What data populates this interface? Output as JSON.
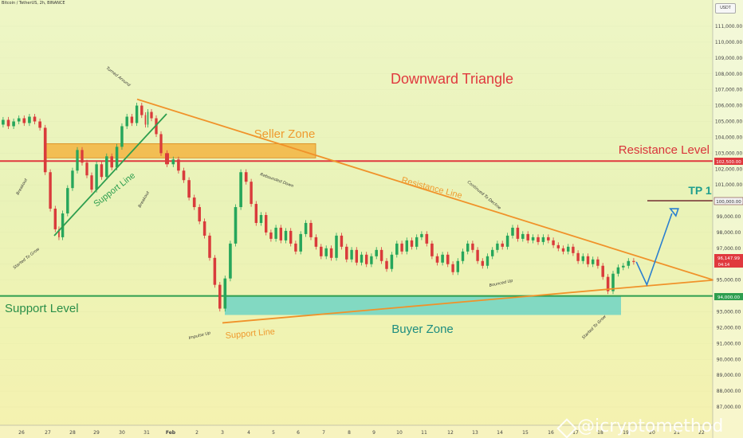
{
  "header": {
    "symbol": "Bitcoin / TetherUS, 2h, BINANCE",
    "unit": "USDT"
  },
  "colors": {
    "resistance": "#f0922a",
    "support_level": "#2e9e4f",
    "resistance_level": "#e0393e",
    "seller_zone": "#f3b441",
    "buyer_zone": "#6fd3c4",
    "up": "#26a65b",
    "down": "#d93b3b",
    "tp": "#1f9e8e"
  },
  "annotations": {
    "title": "Downward Triangle",
    "seller_zone": "Seller Zone",
    "buyer_zone": "Buyer Zone",
    "resistance_level": "Resistance Level",
    "support_level": "Support Level",
    "resistance_line": "Resistance Line",
    "support_line_left": "Support Line",
    "support_line_bottom": "Support Line",
    "tp": "TP 1",
    "small": [
      "Turned Around",
      "Breakout",
      "Started To Grow",
      "Breakout",
      "Rebounded Down",
      "Continued To Decline",
      "Bounced Up",
      "Impulse Up",
      "Started To Grow"
    ]
  },
  "price_labels": {
    "resistance": "102,500.00",
    "tp": "100,000.00",
    "current": "96,147.99",
    "countdown": "04:14",
    "support": "94,000.00"
  },
  "watermark": "@icryptomethod",
  "chart_data": {
    "type": "candlestick",
    "title": "Downward Triangle",
    "ylim": [
      86000,
      112000
    ],
    "y_ticks": [
      87000,
      88000,
      89000,
      90000,
      91000,
      92000,
      93000,
      94000,
      95000,
      96000,
      97000,
      98000,
      99000,
      100000,
      101000,
      102000,
      103000,
      104000,
      105000,
      106000,
      107000,
      108000,
      109000,
      110000,
      111000
    ],
    "x_tick_labels": [
      "26",
      "27",
      "28",
      "29",
      "30",
      "31",
      "Feb",
      "2",
      "3",
      "4",
      "5",
      "6",
      "7",
      "8",
      "9",
      "10",
      "11",
      "12",
      "13",
      "14",
      "15",
      "16",
      "17",
      "18",
      "19",
      "20",
      "21",
      "22"
    ],
    "levels": {
      "resistance_level": 102500,
      "support_level": 94000,
      "tp1": 100000
    },
    "zones": {
      "seller_zone": [
        102700,
        103600
      ],
      "buyer_zone": [
        92800,
        94000
      ]
    },
    "resistance_line": {
      "from": {
        "x": "30.6",
        "y": 106400
      },
      "to": {
        "x": "22",
        "y": 95000
      }
    },
    "support_line": {
      "from": {
        "x": "3",
        "y": 92300
      },
      "to": {
        "x": "22",
        "y": 95000
      }
    },
    "closes": [
      [
        "25.2",
        104800
      ],
      [
        "25.4",
        105100
      ],
      [
        "25.6",
        104700
      ],
      [
        "25.8",
        105000
      ],
      [
        "26.0",
        105200
      ],
      [
        "26.2",
        104900
      ],
      [
        "26.4",
        105300
      ],
      [
        "26.6",
        105000
      ],
      [
        "26.8",
        104600
      ],
      [
        "27.0",
        101800
      ],
      [
        "27.2",
        99500
      ],
      [
        "27.4",
        98200
      ],
      [
        "27.5",
        97700
      ],
      [
        "27.7",
        99200
      ],
      [
        "27.9",
        100800
      ],
      [
        "28.1",
        101900
      ],
      [
        "28.3",
        103200
      ],
      [
        "28.5",
        102400
      ],
      [
        "28.7",
        101600
      ],
      [
        "28.9",
        100700
      ],
      [
        "29.1",
        102300
      ],
      [
        "29.3",
        101500
      ],
      [
        "29.5",
        102800
      ],
      [
        "29.7",
        102100
      ],
      [
        "29.9",
        103400
      ],
      [
        "30.1",
        104700
      ],
      [
        "30.3",
        105300
      ],
      [
        "30.5",
        104900
      ],
      [
        "30.7",
        106000
      ],
      [
        "30.9",
        105400
      ],
      [
        "31.0",
        104800
      ],
      [
        "31.1",
        105600
      ],
      [
        "31.3",
        105200
      ],
      [
        "31.5",
        104200
      ],
      [
        "31.7",
        103000
      ],
      [
        "1.0",
        102300
      ],
      [
        "1.2",
        102600
      ],
      [
        "1.4",
        101900
      ],
      [
        "1.6",
        101300
      ],
      [
        "1.8",
        100200
      ],
      [
        "2.0",
        99600
      ],
      [
        "2.2",
        98700
      ],
      [
        "2.4",
        97800
      ],
      [
        "2.6",
        96400
      ],
      [
        "2.8",
        94700
      ],
      [
        "3.0",
        93200
      ],
      [
        "3.2",
        95100
      ],
      [
        "3.4",
        97300
      ],
      [
        "3.6",
        99600
      ],
      [
        "3.8",
        101800
      ],
      [
        "4.0",
        101200
      ],
      [
        "4.2",
        99800
      ],
      [
        "4.4",
        98600
      ],
      [
        "4.6",
        99100
      ],
      [
        "4.8",
        98000
      ],
      [
        "5.0",
        97600
      ],
      [
        "5.2",
        98300
      ],
      [
        "5.4",
        97500
      ],
      [
        "5.6",
        98100
      ],
      [
        "5.8",
        97300
      ],
      [
        "6.0",
        96800
      ],
      [
        "6.2",
        97900
      ],
      [
        "6.4",
        98600
      ],
      [
        "6.6",
        97700
      ],
      [
        "6.8",
        97100
      ],
      [
        "7.0",
        96500
      ],
      [
        "7.2",
        97000
      ],
      [
        "7.4",
        96400
      ],
      [
        "7.6",
        97800
      ],
      [
        "7.8",
        97100
      ],
      [
        "8.0",
        96300
      ],
      [
        "8.2",
        96900
      ],
      [
        "8.4",
        96100
      ],
      [
        "8.6",
        96600
      ],
      [
        "8.8",
        96000
      ],
      [
        "9.0",
        96500
      ],
      [
        "9.2",
        96900
      ],
      [
        "9.4",
        96200
      ],
      [
        "9.6",
        95700
      ],
      [
        "9.8",
        96600
      ],
      [
        "10.0",
        97300
      ],
      [
        "10.2",
        96800
      ],
      [
        "10.4",
        97500
      ],
      [
        "10.6",
        97100
      ],
      [
        "10.8",
        97700
      ],
      [
        "11.0",
        97900
      ],
      [
        "11.2",
        97300
      ],
      [
        "11.4",
        96500
      ],
      [
        "11.6",
        96100
      ],
      [
        "11.8",
        96600
      ],
      [
        "12.0",
        96000
      ],
      [
        "12.2",
        95500
      ],
      [
        "12.4",
        96200
      ],
      [
        "12.6",
        96800
      ],
      [
        "12.8",
        97300
      ],
      [
        "13.0",
        96900
      ],
      [
        "13.2",
        96200
      ],
      [
        "13.4",
        95900
      ],
      [
        "13.6",
        96500
      ],
      [
        "13.8",
        96900
      ],
      [
        "14.0",
        97300
      ],
      [
        "14.2",
        97100
      ],
      [
        "14.4",
        97800
      ],
      [
        "14.6",
        98300
      ],
      [
        "14.8",
        97600
      ],
      [
        "15.0",
        97900
      ],
      [
        "15.2",
        97500
      ],
      [
        "15.4",
        97700
      ],
      [
        "15.6",
        97400
      ],
      [
        "15.8",
        97700
      ],
      [
        "16.0",
        97500
      ],
      [
        "16.2",
        97200
      ],
      [
        "16.4",
        97000
      ],
      [
        "16.6",
        96800
      ],
      [
        "16.8",
        97100
      ],
      [
        "17.0",
        96700
      ],
      [
        "17.2",
        96200
      ],
      [
        "17.4",
        96500
      ],
      [
        "17.6",
        96000
      ],
      [
        "17.8",
        96300
      ],
      [
        "18.0",
        95900
      ],
      [
        "18.2",
        95200
      ],
      [
        "18.4",
        94300
      ],
      [
        "18.6",
        95400
      ],
      [
        "18.8",
        95800
      ],
      [
        "19.0",
        95900
      ],
      [
        "19.2",
        96200
      ],
      [
        "19.4",
        96147.99
      ]
    ],
    "projection": [
      [
        "19.4",
        96148
      ],
      [
        "19.8",
        94700
      ],
      [
        "20.8",
        99200
      ]
    ]
  }
}
